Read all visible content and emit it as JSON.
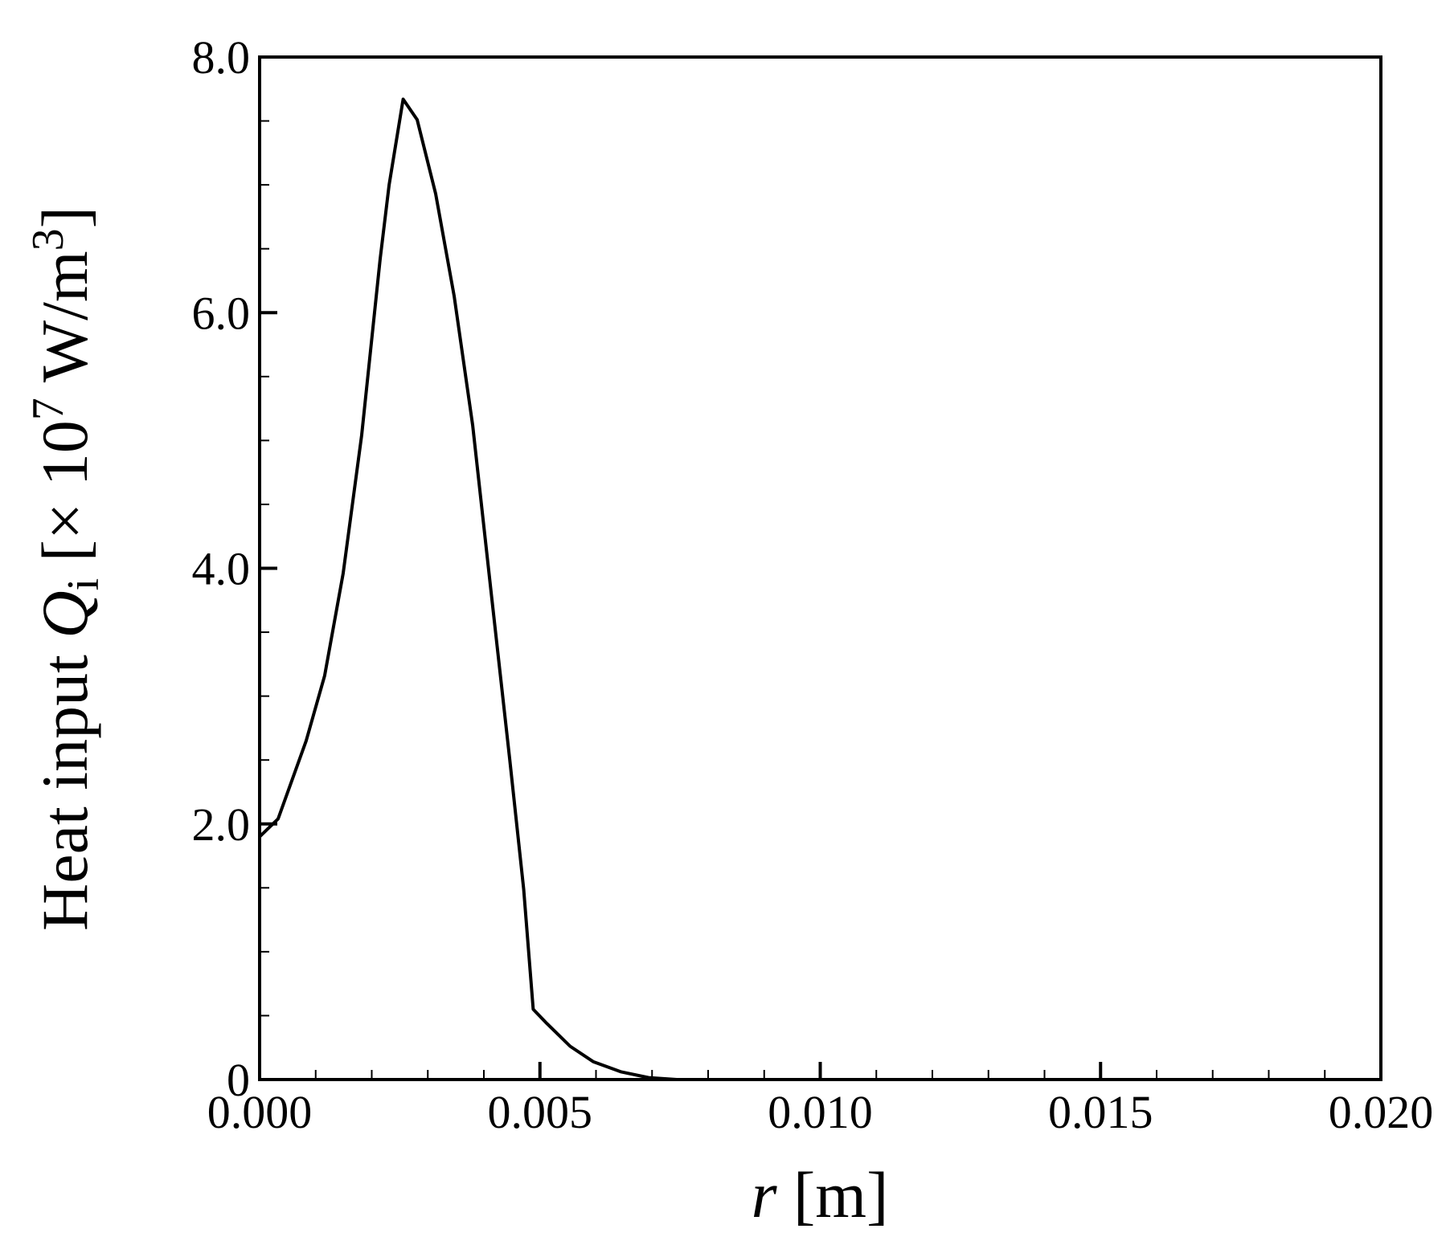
{
  "chart_data": {
    "type": "line",
    "xlabel": [
      "r",
      " [m]"
    ],
    "ylabel": [
      "Heat input ",
      "Q",
      "i",
      " [× 10",
      "7",
      " W/m",
      "3",
      "]"
    ],
    "x": [
      0,
      0.00033,
      0.00083,
      0.00116,
      0.00149,
      0.00182,
      0.00215,
      0.00231,
      0.00256,
      0.00281,
      0.00314,
      0.00347,
      0.0038,
      0.00413,
      0.00446,
      0.00471,
      0.00488,
      0.00512,
      0.00554,
      0.00595,
      0.00645,
      0.00694,
      0.00744,
      0.02
    ],
    "series": [
      {
        "color": "#000000",
        "values": [
          1.9,
          2.04,
          2.65,
          3.16,
          3.96,
          5.04,
          6.42,
          7.0,
          7.67,
          7.51,
          6.93,
          6.13,
          5.12,
          3.81,
          2.51,
          1.49,
          0.55,
          0.44,
          0.26,
          0.14,
          0.06,
          0.015,
          0,
          0
        ]
      }
    ],
    "xlim": [
      0,
      0.02
    ],
    "ylim": [
      0,
      8
    ],
    "xticks": [
      {
        "value": 0,
        "label": "0.000"
      },
      {
        "value": 0.005,
        "label": "0.005"
      },
      {
        "value": 0.01,
        "label": "0.010"
      },
      {
        "value": 0.015,
        "label": "0.015"
      },
      {
        "value": 0.02,
        "label": "0.020"
      }
    ],
    "yticks": [
      0,
      {
        "value": 2,
        "label": "2.0"
      },
      {
        "value": 4,
        "label": "4.0"
      },
      {
        "value": 6,
        "label": "6.0"
      },
      {
        "value": 8,
        "label": "8.0"
      }
    ],
    "xminorticks": [
      0.001,
      0.002,
      0.003,
      0.004,
      0.006,
      0.007,
      0.008,
      0.009,
      0.011,
      0.012,
      0.013,
      0.014,
      0.016,
      0.017,
      0.018,
      0.019
    ],
    "yminorticks": [
      0.5,
      1,
      1.5,
      2.5,
      3,
      3.5,
      4.5,
      5,
      5.5,
      6.5,
      7,
      7.5
    ]
  }
}
